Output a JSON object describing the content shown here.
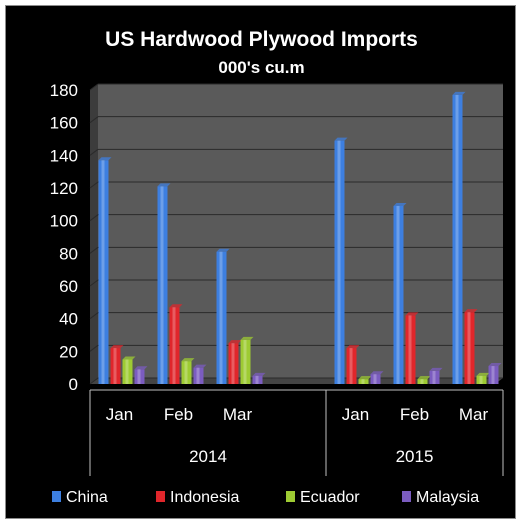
{
  "chart_data": {
    "type": "bar",
    "title": "US Hardwood Plywood Imports",
    "subtitle": "000's cu.m",
    "categories": [
      "Jan",
      "Feb",
      "Mar",
      "",
      "Jan",
      "Feb",
      "Mar"
    ],
    "groups": [
      {
        "label": "2014",
        "span": 4
      },
      {
        "label": "2015",
        "span": 3
      }
    ],
    "series": [
      {
        "name": "China",
        "color": "#3d7fe0",
        "values": [
          137,
          121,
          81,
          null,
          149,
          109,
          177
        ]
      },
      {
        "name": "Indonesia",
        "color": "#e0262b",
        "values": [
          22,
          47,
          25,
          null,
          22,
          42,
          44
        ]
      },
      {
        "name": "Ecuador",
        "color": "#9ecb33",
        "values": [
          15,
          14,
          27,
          null,
          3,
          3,
          5
        ]
      },
      {
        "name": "Malaysia",
        "color": "#7b5cc0",
        "values": [
          9,
          10,
          5,
          null,
          6,
          8,
          11
        ]
      }
    ],
    "ylim": [
      0,
      180
    ],
    "yticks": [
      0,
      20,
      40,
      60,
      80,
      100,
      120,
      140,
      160,
      180
    ],
    "grid": true,
    "legend_position": "bottom"
  }
}
